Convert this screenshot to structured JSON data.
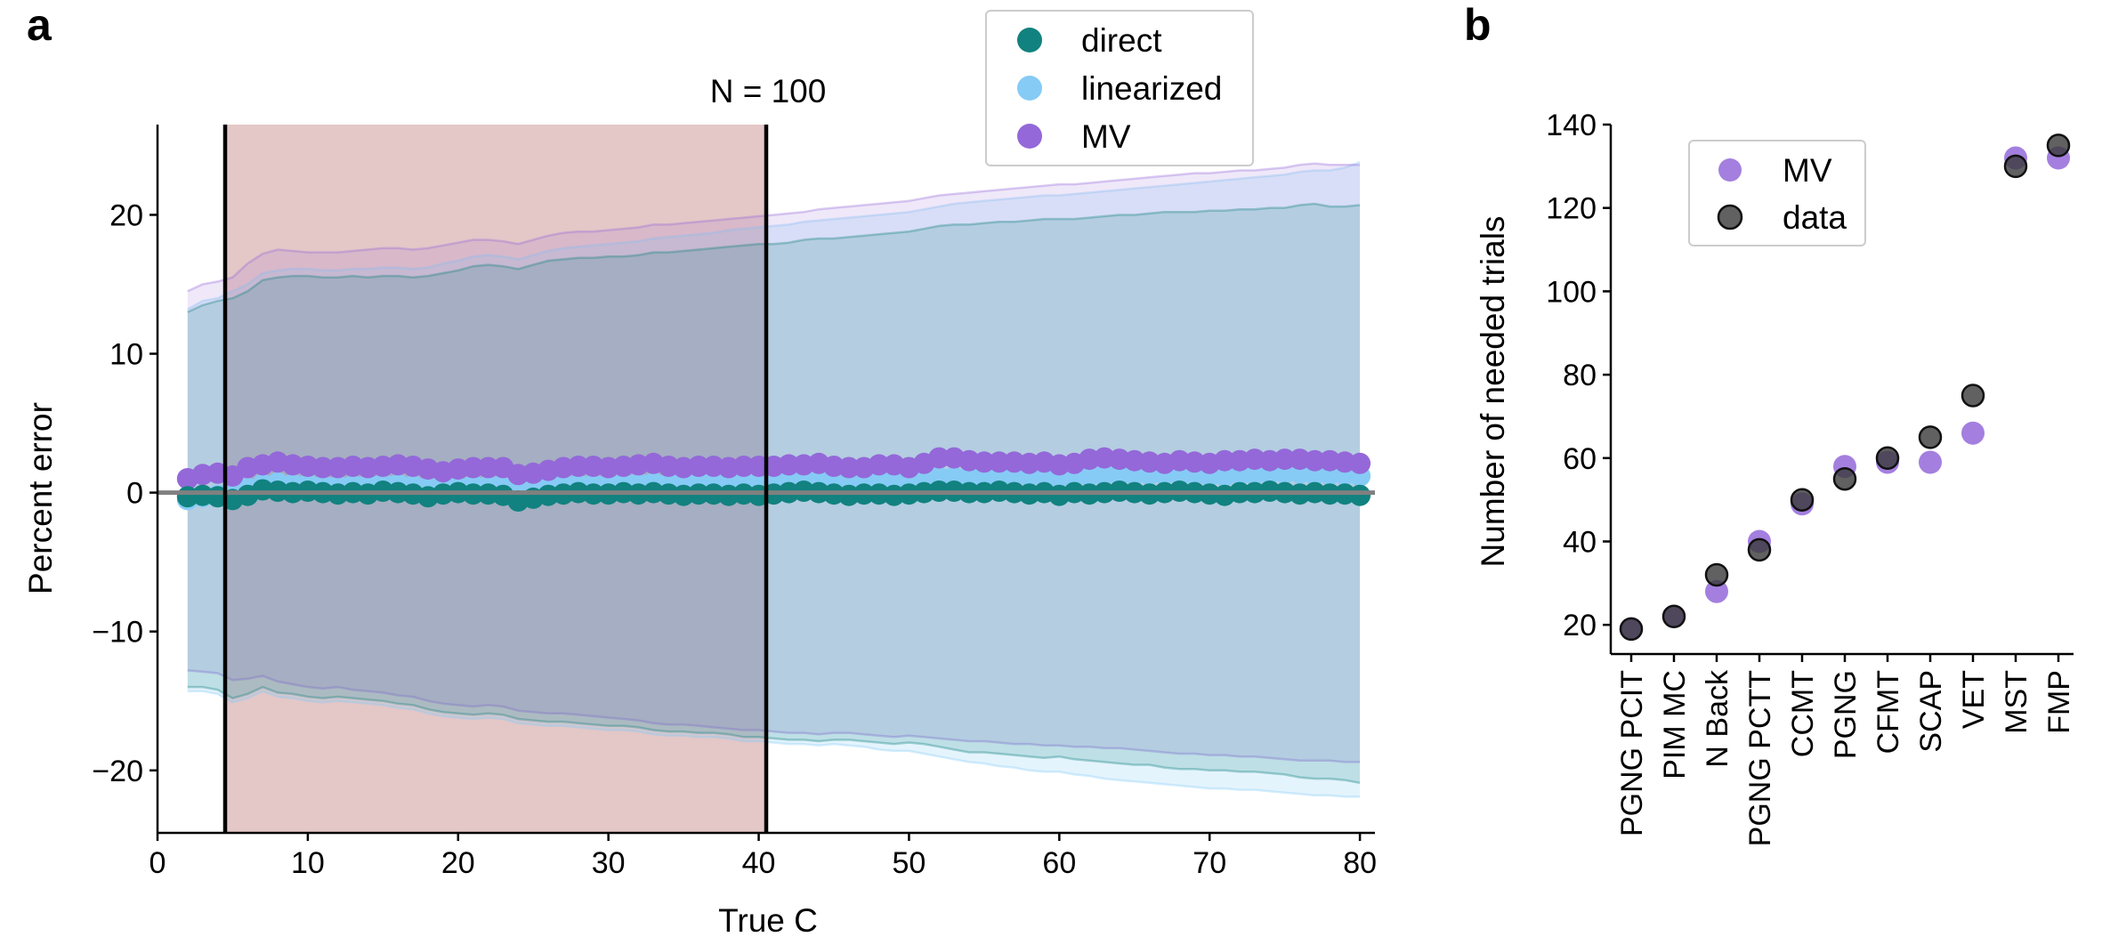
{
  "panel_a_label": "a",
  "panel_b_label": "b",
  "colors": {
    "direct": "#11827f",
    "linearized": "#86cbf5",
    "MV": "#9468d9",
    "shade": "#c9908f",
    "data": "#3a3a3a",
    "zero_line": "#808080"
  },
  "chart_data": [
    {
      "type": "scatter",
      "panel": "a",
      "title": "N = 100",
      "xlabel": "True C",
      "ylabel": "Percent error",
      "xlim": [
        0,
        81
      ],
      "ylim": [
        -24.5,
        26.5
      ],
      "xticks": [
        0,
        10,
        20,
        30,
        40,
        50,
        60,
        70,
        80
      ],
      "yticks": [
        -20,
        -10,
        0,
        10,
        20
      ],
      "ytick_labels": [
        "−20",
        "−10",
        "0",
        "10",
        "20"
      ],
      "legend": {
        "position": "top-center",
        "entries": [
          "direct",
          "linearized",
          "MV"
        ]
      },
      "vertical_lines": [
        4.5,
        40.5
      ],
      "shaded_region": [
        4.5,
        40.5
      ],
      "horizontal_line": 0,
      "x": [
        2,
        3,
        4,
        5,
        6,
        7,
        8,
        9,
        10,
        11,
        12,
        13,
        14,
        15,
        16,
        17,
        18,
        19,
        20,
        21,
        22,
        23,
        24,
        25,
        26,
        27,
        28,
        29,
        30,
        31,
        32,
        33,
        34,
        35,
        36,
        37,
        38,
        39,
        40,
        41,
        42,
        43,
        44,
        45,
        46,
        47,
        48,
        49,
        50,
        51,
        52,
        53,
        54,
        55,
        56,
        57,
        58,
        59,
        60,
        61,
        62,
        63,
        64,
        65,
        66,
        67,
        68,
        69,
        70,
        71,
        72,
        73,
        74,
        75,
        76,
        77,
        78,
        79,
        80
      ],
      "series": [
        {
          "name": "direct",
          "values": [
            -0.3,
            -0.2,
            -0.3,
            -0.5,
            -0.2,
            0.2,
            0.1,
            0.0,
            0.1,
            0.0,
            -0.1,
            0.0,
            -0.1,
            0.1,
            0.0,
            -0.1,
            -0.3,
            -0.1,
            0.0,
            -0.1,
            -0.1,
            -0.2,
            -0.6,
            -0.4,
            -0.2,
            -0.1,
            0.0,
            -0.1,
            -0.1,
            0.0,
            -0.1,
            0.0,
            -0.1,
            -0.2,
            -0.1,
            -0.1,
            -0.2,
            -0.1,
            -0.2,
            -0.1,
            0.0,
            0.1,
            0.0,
            -0.1,
            -0.2,
            -0.1,
            -0.1,
            -0.2,
            -0.1,
            0.0,
            0.1,
            0.1,
            0.0,
            0.0,
            0.1,
            0.0,
            -0.1,
            0.0,
            -0.2,
            0.0,
            -0.1,
            0.0,
            0.1,
            0.0,
            -0.1,
            0.0,
            0.1,
            0.0,
            -0.1,
            -0.2,
            0.0,
            0.0,
            0.1,
            0.0,
            -0.1,
            0.0,
            -0.1,
            -0.1,
            -0.2
          ],
          "upper": [
            13.0,
            13.5,
            13.8,
            14.0,
            14.5,
            15.3,
            15.5,
            15.6,
            15.6,
            15.5,
            15.5,
            15.6,
            15.5,
            15.6,
            15.6,
            15.5,
            15.6,
            15.8,
            16.0,
            16.3,
            16.4,
            16.3,
            16.1,
            16.4,
            16.7,
            16.8,
            16.9,
            16.9,
            17.0,
            17.0,
            17.1,
            17.3,
            17.3,
            17.4,
            17.5,
            17.6,
            17.7,
            17.8,
            17.9,
            17.9,
            18.0,
            18.2,
            18.3,
            18.3,
            18.4,
            18.5,
            18.6,
            18.7,
            18.8,
            19.0,
            19.2,
            19.3,
            19.3,
            19.4,
            19.5,
            19.5,
            19.6,
            19.7,
            19.7,
            19.7,
            19.8,
            19.9,
            20.0,
            20.0,
            20.1,
            20.2,
            20.2,
            20.2,
            20.3,
            20.3,
            20.4,
            20.4,
            20.5,
            20.5,
            20.7,
            20.8,
            20.6,
            20.6,
            20.7
          ],
          "lower": [
            -14.0,
            -14.0,
            -14.2,
            -14.8,
            -14.5,
            -14.0,
            -14.4,
            -14.5,
            -14.7,
            -14.8,
            -14.7,
            -14.8,
            -14.9,
            -15.0,
            -15.2,
            -15.3,
            -15.6,
            -15.8,
            -15.9,
            -16.0,
            -15.9,
            -16.0,
            -16.3,
            -16.4,
            -16.5,
            -16.5,
            -16.6,
            -16.7,
            -16.8,
            -16.8,
            -16.9,
            -17.1,
            -17.2,
            -17.2,
            -17.3,
            -17.3,
            -17.4,
            -17.6,
            -17.6,
            -17.7,
            -17.8,
            -17.8,
            -17.9,
            -17.8,
            -17.8,
            -17.9,
            -18.0,
            -18.1,
            -18.0,
            -18.1,
            -18.3,
            -18.5,
            -18.7,
            -18.7,
            -18.8,
            -18.9,
            -19.0,
            -19.1,
            -19.0,
            -19.2,
            -19.3,
            -19.4,
            -19.5,
            -19.6,
            -19.6,
            -19.8,
            -19.9,
            -19.9,
            -20.0,
            -20.0,
            -20.1,
            -20.1,
            -20.2,
            -20.3,
            -20.5,
            -20.6,
            -20.6,
            -20.7,
            -20.9
          ]
        },
        {
          "name": "linearized",
          "values": [
            -0.5,
            -0.3,
            -0.2,
            0.0,
            0.3,
            0.6,
            0.7,
            0.6,
            0.6,
            0.5,
            0.5,
            0.5,
            0.6,
            0.6,
            0.6,
            0.5,
            0.4,
            0.5,
            0.5,
            0.5,
            0.5,
            0.6,
            0.3,
            0.4,
            0.5,
            0.6,
            0.6,
            0.6,
            0.6,
            0.7,
            0.7,
            0.7,
            0.7,
            0.7,
            0.8,
            0.8,
            0.8,
            0.8,
            0.8,
            0.8,
            0.9,
            0.9,
            0.9,
            0.9,
            0.9,
            0.9,
            1.0,
            1.0,
            1.0,
            1.1,
            1.1,
            1.1,
            1.1,
            1.1,
            1.2,
            1.2,
            1.2,
            1.2,
            1.1,
            1.2,
            1.2,
            1.3,
            1.3,
            1.3,
            1.3,
            1.3,
            1.3,
            1.3,
            1.2,
            1.2,
            1.3,
            1.3,
            1.4,
            1.4,
            1.4,
            1.3,
            1.3,
            1.3,
            1.2
          ],
          "upper": [
            13.2,
            13.8,
            14.0,
            14.5,
            15.0,
            15.8,
            16.0,
            16.1,
            16.1,
            16.0,
            16.0,
            16.1,
            16.1,
            16.2,
            16.2,
            16.1,
            16.2,
            16.5,
            16.7,
            17.0,
            17.1,
            17.0,
            16.8,
            17.1,
            17.4,
            17.6,
            17.7,
            17.8,
            17.9,
            18.0,
            18.1,
            18.3,
            18.4,
            18.5,
            18.6,
            18.7,
            18.9,
            19.0,
            19.1,
            19.2,
            19.3,
            19.5,
            19.6,
            19.7,
            19.8,
            19.9,
            20.0,
            20.1,
            20.2,
            20.4,
            20.6,
            20.8,
            20.9,
            21.0,
            21.1,
            21.2,
            21.3,
            21.4,
            21.4,
            21.5,
            21.6,
            21.7,
            21.8,
            21.9,
            22.0,
            22.1,
            22.2,
            22.3,
            22.4,
            22.5,
            22.6,
            22.7,
            22.8,
            22.9,
            23.1,
            23.2,
            23.2,
            23.4,
            23.8
          ],
          "lower": [
            -14.3,
            -14.3,
            -14.5,
            -15.1,
            -14.8,
            -14.3,
            -14.7,
            -14.8,
            -15.0,
            -15.1,
            -15.0,
            -15.1,
            -15.2,
            -15.3,
            -15.5,
            -15.6,
            -15.9,
            -16.1,
            -16.2,
            -16.3,
            -16.2,
            -16.3,
            -16.6,
            -16.7,
            -16.8,
            -16.8,
            -16.9,
            -17.0,
            -17.1,
            -17.1,
            -17.2,
            -17.4,
            -17.5,
            -17.5,
            -17.6,
            -17.6,
            -17.7,
            -17.9,
            -17.9,
            -18.0,
            -18.1,
            -18.1,
            -18.2,
            -18.1,
            -18.2,
            -18.3,
            -18.5,
            -18.6,
            -18.6,
            -18.8,
            -19.0,
            -19.2,
            -19.4,
            -19.5,
            -19.7,
            -19.8,
            -20.0,
            -20.1,
            -20.1,
            -20.3,
            -20.4,
            -20.6,
            -20.7,
            -20.8,
            -20.9,
            -21.0,
            -21.1,
            -21.2,
            -21.3,
            -21.3,
            -21.4,
            -21.4,
            -21.5,
            -21.6,
            -21.7,
            -21.8,
            -21.8,
            -21.9,
            -21.9
          ]
        },
        {
          "name": "MV",
          "values": [
            1.0,
            1.3,
            1.4,
            1.2,
            1.8,
            2.0,
            2.2,
            2.0,
            1.9,
            1.8,
            1.8,
            1.9,
            1.8,
            1.9,
            2.0,
            1.9,
            1.7,
            1.5,
            1.7,
            1.8,
            1.8,
            1.8,
            1.3,
            1.4,
            1.6,
            1.8,
            1.9,
            1.9,
            1.8,
            1.9,
            2.0,
            2.1,
            1.9,
            1.8,
            1.9,
            1.9,
            1.8,
            1.9,
            1.9,
            1.9,
            2.0,
            2.0,
            2.1,
            1.9,
            1.8,
            1.8,
            2.0,
            2.0,
            1.8,
            2.1,
            2.5,
            2.5,
            2.3,
            2.2,
            2.2,
            2.2,
            2.1,
            2.2,
            2.0,
            2.1,
            2.4,
            2.5,
            2.4,
            2.3,
            2.2,
            2.1,
            2.3,
            2.2,
            2.1,
            2.3,
            2.3,
            2.4,
            2.3,
            2.4,
            2.4,
            2.3,
            2.3,
            2.2,
            2.1
          ],
          "upper": [
            14.5,
            15.0,
            15.2,
            15.5,
            16.5,
            17.2,
            17.5,
            17.4,
            17.3,
            17.3,
            17.3,
            17.4,
            17.5,
            17.6,
            17.6,
            17.5,
            17.6,
            17.8,
            18.0,
            18.2,
            18.2,
            18.1,
            17.9,
            18.2,
            18.5,
            18.7,
            18.8,
            18.8,
            18.9,
            19.0,
            19.1,
            19.3,
            19.3,
            19.4,
            19.5,
            19.6,
            19.7,
            19.8,
            19.9,
            20.0,
            20.1,
            20.2,
            20.4,
            20.5,
            20.6,
            20.7,
            20.8,
            20.9,
            21.0,
            21.2,
            21.4,
            21.5,
            21.6,
            21.7,
            21.8,
            21.9,
            22.0,
            22.1,
            22.2,
            22.2,
            22.3,
            22.4,
            22.5,
            22.6,
            22.7,
            22.8,
            22.9,
            23.0,
            23.0,
            23.1,
            23.2,
            23.2,
            23.3,
            23.4,
            23.6,
            23.7,
            23.6,
            23.6,
            23.6
          ],
          "lower": [
            -12.8,
            -12.9,
            -13.0,
            -13.5,
            -13.4,
            -13.2,
            -13.6,
            -13.8,
            -14.0,
            -14.1,
            -14.0,
            -14.2,
            -14.3,
            -14.4,
            -14.6,
            -14.7,
            -15.0,
            -15.2,
            -15.3,
            -15.4,
            -15.3,
            -15.4,
            -15.7,
            -15.8,
            -15.9,
            -15.9,
            -16.0,
            -16.1,
            -16.2,
            -16.3,
            -16.4,
            -16.6,
            -16.7,
            -16.7,
            -16.8,
            -16.9,
            -17.0,
            -17.1,
            -17.1,
            -17.2,
            -17.3,
            -17.3,
            -17.4,
            -17.3,
            -17.3,
            -17.4,
            -17.5,
            -17.6,
            -17.5,
            -17.6,
            -17.7,
            -17.8,
            -17.9,
            -17.9,
            -18.0,
            -18.1,
            -18.1,
            -18.2,
            -18.2,
            -18.3,
            -18.3,
            -18.4,
            -18.4,
            -18.5,
            -18.6,
            -18.7,
            -18.8,
            -18.8,
            -18.9,
            -18.9,
            -19.0,
            -19.0,
            -19.1,
            -19.2,
            -19.3,
            -19.3,
            -19.3,
            -19.4,
            -19.4
          ]
        }
      ]
    },
    {
      "type": "scatter",
      "panel": "b",
      "xlabel": "",
      "ylabel": "Number of needed trials",
      "ylim": [
        13,
        140
      ],
      "yticks": [
        20,
        40,
        60,
        80,
        100,
        120,
        140
      ],
      "legend": {
        "position": "top-left",
        "entries": [
          "MV",
          "data"
        ]
      },
      "categories": [
        "PGNG PCIT",
        "PIM MC",
        "N Back",
        "PGNG PCTT",
        "CCMT",
        "PGNG",
        "CFMT",
        "SCAP",
        "VET",
        "MST",
        "FMP"
      ],
      "series": [
        {
          "name": "MV",
          "values": [
            19,
            22,
            28,
            40,
            49,
            58,
            59,
            59,
            66,
            132,
            132
          ]
        },
        {
          "name": "data",
          "values": [
            19,
            22,
            32,
            38,
            50,
            55,
            60,
            65,
            75,
            130,
            135
          ]
        }
      ]
    }
  ]
}
